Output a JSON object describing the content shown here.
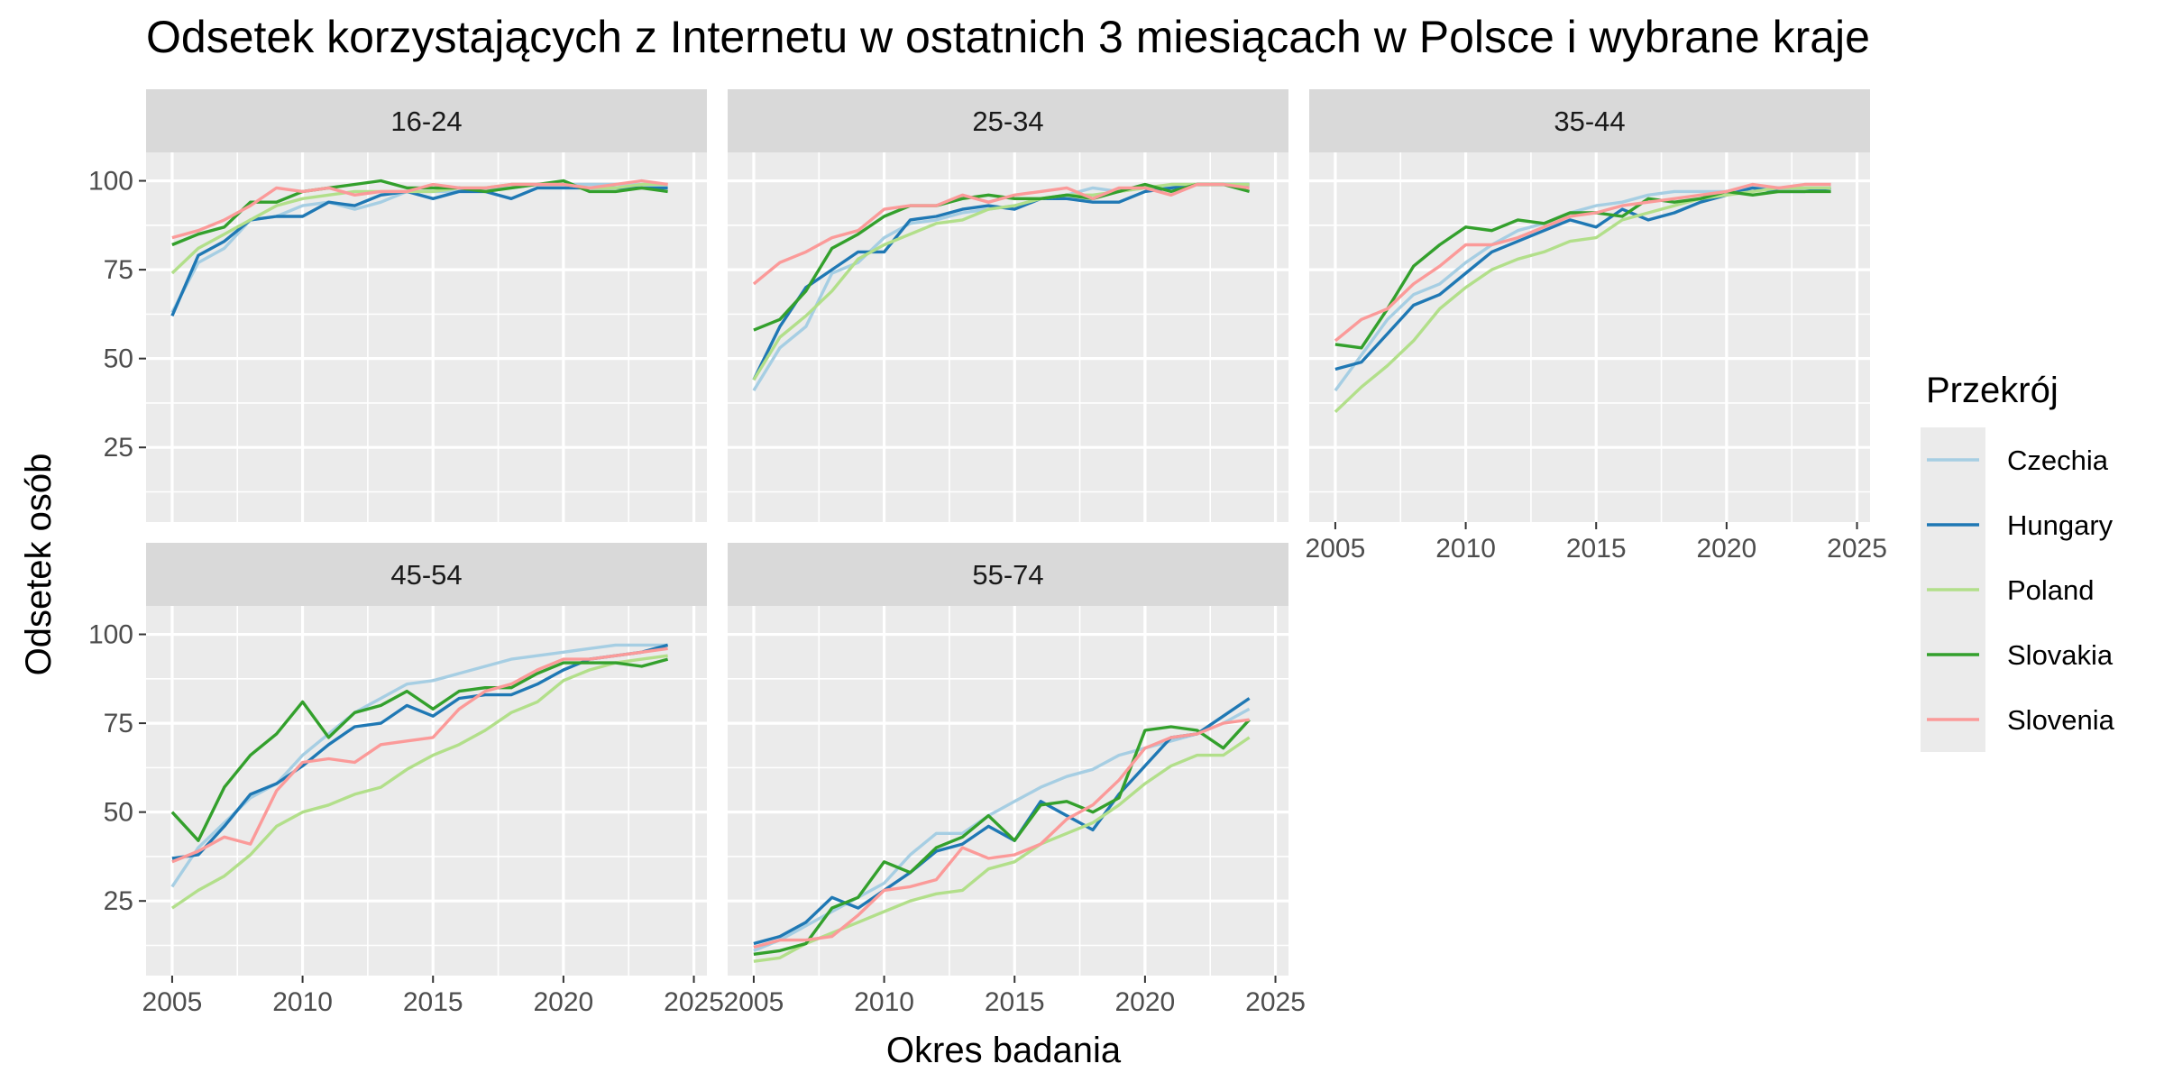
{
  "colors": {
    "panel_bg": "#ebebeb",
    "strip_bg": "#d9d9d9",
    "grid_major": "#ffffff",
    "tick": "#333333",
    "Czechia": "#a6cee3",
    "Hungary": "#1f78b4",
    "Poland": "#b2df8a",
    "Slovakia": "#33a02c",
    "Slovenia": "#fb9a99"
  },
  "chart_data": {
    "type": "line",
    "title": "Odsetek korzystających z Internetu w ostatnich 3 miesiącach w Polsce i wybrane kraje",
    "xlabel": "Okres badania",
    "ylabel": "Odsetek osób",
    "xlim": [
      2004,
      2025.5
    ],
    "ylim": [
      4,
      108
    ],
    "x_ticks": [
      2005,
      2010,
      2015,
      2020,
      2025
    ],
    "y_ticks": [
      25,
      50,
      75,
      100
    ],
    "grid": true,
    "legend": {
      "title": "Przekrój",
      "position": "right",
      "entries": [
        "Czechia",
        "Hungary",
        "Poland",
        "Slovakia",
        "Slovenia"
      ]
    },
    "x": [
      2005,
      2006,
      2007,
      2008,
      2009,
      2010,
      2011,
      2012,
      2013,
      2014,
      2015,
      2016,
      2017,
      2018,
      2019,
      2020,
      2021,
      2022,
      2023,
      2024
    ],
    "facets": [
      {
        "label": "16-24",
        "series": [
          {
            "name": "Czechia",
            "values": [
              63,
              77,
              81,
              89,
              90,
              93,
              94,
              92,
              94,
              97,
              97,
              97,
              98,
              98,
              99,
              99,
              99,
              99,
              99,
              99
            ]
          },
          {
            "name": "Hungary",
            "values": [
              62,
              79,
              83,
              89,
              90,
              90,
              94,
              93,
              96,
              97,
              95,
              97,
              97,
              95,
              98,
              98,
              98,
              98,
              98,
              98
            ]
          },
          {
            "name": "Poland",
            "values": [
              74,
              81,
              85,
              89,
              93,
              95,
              96,
              97,
              97,
              97,
              97,
              98,
              98,
              99,
              99,
              99,
              98,
              98,
              99,
              99
            ]
          },
          {
            "name": "Slovakia",
            "values": [
              82,
              85,
              87,
              94,
              94,
              97,
              98,
              99,
              100,
              98,
              98,
              98,
              97,
              98,
              99,
              100,
              97,
              97,
              98,
              97
            ]
          },
          {
            "name": "Slovenia",
            "values": [
              84,
              86,
              89,
              93,
              98,
              97,
              98,
              96,
              97,
              97,
              99,
              98,
              98,
              99,
              99,
              99,
              98,
              99,
              100,
              99
            ]
          }
        ]
      },
      {
        "label": "25-34",
        "series": [
          {
            "name": "Czechia",
            "values": [
              41,
              53,
              59,
              74,
              77,
              84,
              88,
              89,
              91,
              92,
              93,
              95,
              96,
              98,
              97,
              98,
              98,
              99,
              99,
              99
            ]
          },
          {
            "name": "Hungary",
            "values": [
              44,
              59,
              70,
              75,
              80,
              80,
              89,
              90,
              92,
              93,
              92,
              95,
              95,
              94,
              94,
              97,
              98,
              99,
              99,
              99
            ]
          },
          {
            "name": "Poland",
            "values": [
              44,
              56,
              62,
              69,
              78,
              82,
              85,
              88,
              89,
              92,
              93,
              95,
              96,
              96,
              97,
              98,
              99,
              99,
              99,
              99
            ]
          },
          {
            "name": "Slovakia",
            "values": [
              58,
              61,
              69,
              81,
              85,
              90,
              93,
              93,
              95,
              96,
              95,
              95,
              96,
              95,
              97,
              99,
              97,
              99,
              99,
              97
            ]
          },
          {
            "name": "Slovenia",
            "values": [
              71,
              77,
              80,
              84,
              86,
              92,
              93,
              93,
              96,
              94,
              96,
              97,
              98,
              95,
              98,
              98,
              96,
              99,
              99,
              98
            ]
          }
        ]
      },
      {
        "label": "35-44",
        "series": [
          {
            "name": "Czechia",
            "values": [
              41,
              51,
              61,
              68,
              71,
              77,
              82,
              86,
              88,
              91,
              93,
              94,
              96,
              97,
              97,
              97,
              98,
              98,
              98,
              98
            ]
          },
          {
            "name": "Hungary",
            "values": [
              47,
              49,
              57,
              65,
              68,
              74,
              80,
              83,
              86,
              89,
              87,
              92,
              89,
              91,
              94,
              96,
              98,
              97,
              97,
              98
            ]
          },
          {
            "name": "Poland",
            "values": [
              35,
              42,
              48,
              55,
              64,
              70,
              75,
              78,
              80,
              83,
              84,
              89,
              91,
              93,
              95,
              96,
              97,
              98,
              98,
              98
            ]
          },
          {
            "name": "Slovakia",
            "values": [
              54,
              53,
              64,
              76,
              82,
              87,
              86,
              89,
              88,
              91,
              91,
              90,
              95,
              94,
              95,
              97,
              96,
              97,
              97,
              97
            ]
          },
          {
            "name": "Slovenia",
            "values": [
              55,
              61,
              64,
              71,
              76,
              82,
              82,
              84,
              87,
              90,
              91,
              93,
              94,
              95,
              96,
              97,
              99,
              98,
              99,
              99
            ]
          }
        ]
      },
      {
        "label": "45-54",
        "series": [
          {
            "name": "Czechia",
            "values": [
              29,
              40,
              47,
              54,
              58,
              66,
              72,
              78,
              82,
              86,
              87,
              89,
              91,
              93,
              94,
              95,
              96,
              97,
              97,
              97
            ]
          },
          {
            "name": "Hungary",
            "values": [
              37,
              38,
              46,
              55,
              58,
              63,
              69,
              74,
              75,
              80,
              77,
              82,
              83,
              83,
              86,
              90,
              93,
              94,
              95,
              97
            ]
          },
          {
            "name": "Poland",
            "values": [
              23,
              28,
              32,
              38,
              46,
              50,
              52,
              55,
              57,
              62,
              66,
              69,
              73,
              78,
              81,
              87,
              90,
              92,
              93,
              94
            ]
          },
          {
            "name": "Slovakia",
            "values": [
              50,
              42,
              57,
              66,
              72,
              81,
              71,
              78,
              80,
              84,
              79,
              84,
              85,
              85,
              89,
              92,
              92,
              92,
              91,
              93
            ]
          },
          {
            "name": "Slovenia",
            "values": [
              36,
              39,
              43,
              41,
              56,
              64,
              65,
              64,
              69,
              70,
              71,
              79,
              84,
              86,
              90,
              93,
              93,
              94,
              95,
              96
            ]
          }
        ]
      },
      {
        "label": "55-74",
        "series": [
          {
            "name": "Czechia",
            "values": [
              11,
              14,
              18,
              22,
              26,
              30,
              38,
              44,
              44,
              49,
              53,
              57,
              60,
              62,
              66,
              68,
              70,
              72,
              75,
              79
            ]
          },
          {
            "name": "Hungary",
            "values": [
              13,
              15,
              19,
              26,
              23,
              28,
              33,
              39,
              41,
              46,
              42,
              53,
              49,
              45,
              55,
              63,
              71,
              72,
              77,
              82
            ]
          },
          {
            "name": "Poland",
            "values": [
              8,
              9,
              13,
              16,
              19,
              22,
              25,
              27,
              28,
              34,
              36,
              41,
              44,
              47,
              52,
              58,
              63,
              66,
              66,
              71
            ]
          },
          {
            "name": "Slovakia",
            "values": [
              10,
              11,
              13,
              23,
              26,
              36,
              33,
              40,
              43,
              49,
              42,
              52,
              53,
              50,
              54,
              73,
              74,
              73,
              68,
              76
            ]
          },
          {
            "name": "Slovenia",
            "values": [
              12,
              14,
              14,
              15,
              21,
              28,
              29,
              31,
              40,
              37,
              38,
              41,
              48,
              52,
              59,
              68,
              71,
              72,
              75,
              76
            ]
          }
        ]
      }
    ]
  }
}
